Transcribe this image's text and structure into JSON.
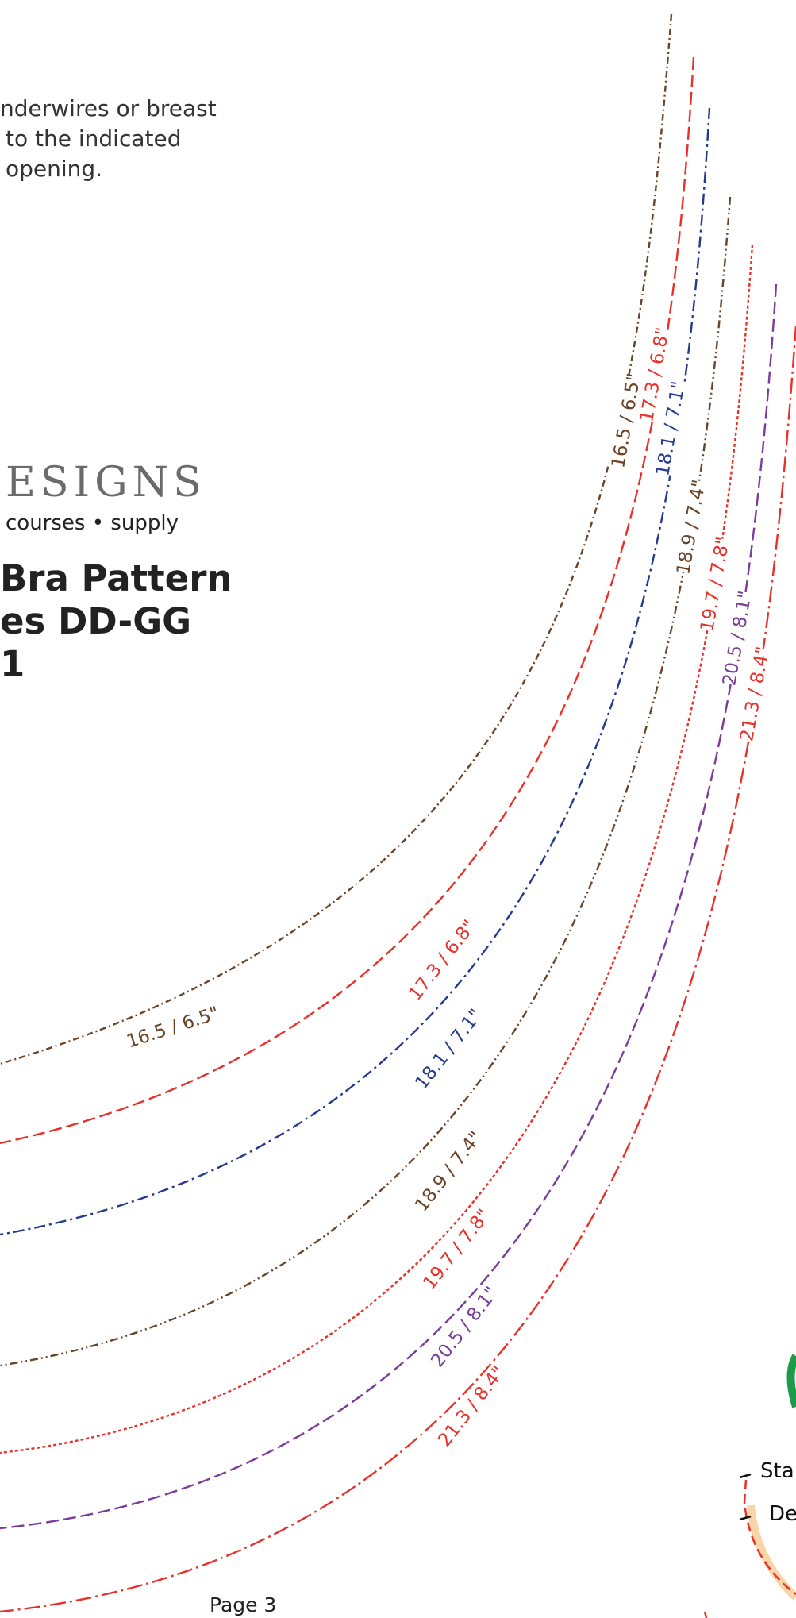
{
  "instructions": {
    "line1": "nderwires or breast",
    "line2": "to the indicated",
    "line3": "opening."
  },
  "brand": {
    "name": "ESIGNS",
    "tagline": "courses • supply"
  },
  "pattern": {
    "title_line1": "Bra Pattern",
    "title_line2": "es DD-GG",
    "title_line3": "1"
  },
  "wires": [
    {
      "label": "16.5 / 6.5\"",
      "color": "#6b4326",
      "dash": "8 4 2 4"
    },
    {
      "label": "17.3 / 6.8\"",
      "color": "#e8312a",
      "dash": "16 6"
    },
    {
      "label": "18.1 / 7.1\"",
      "color": "#233a8f",
      "dash": "14 5 3 5"
    },
    {
      "label": "18.9 / 7.4\"",
      "color": "#6b4326",
      "dash": "10 4 2 4 2 4"
    },
    {
      "label": "19.7 / 7.8\"",
      "color": "#e8312a",
      "dash": "4 3"
    },
    {
      "label": "20.5 / 8.1\"",
      "color": "#7a3d98",
      "dash": "16 6"
    },
    {
      "label": "21.3 / 8.4\"",
      "color": "#e8312a",
      "dash": "20 5 3 5"
    }
  ],
  "legend": {
    "start": "Sta",
    "end": "De"
  },
  "footer": {
    "page": "Page 3"
  },
  "colors": {
    "legend_green": "#1d9a4a",
    "legend_peach": "#fbd4a8"
  }
}
